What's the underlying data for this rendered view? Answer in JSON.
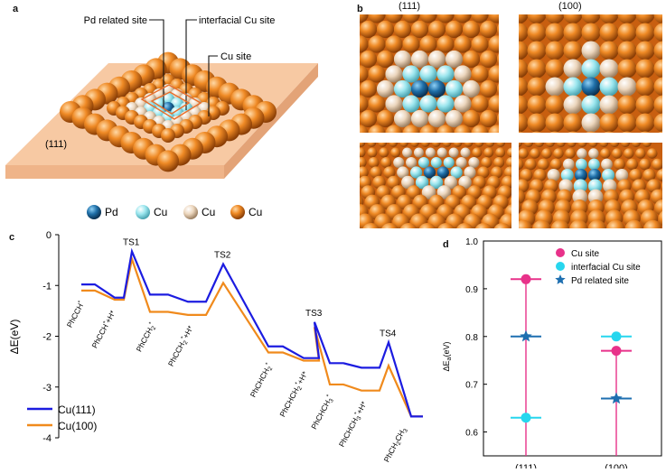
{
  "panel_a": {
    "letter": "a",
    "label_pd_site": "Pd related site",
    "label_interfacial": "interfacial Cu site",
    "label_cu_site": "Cu site",
    "label_facet": "(111)",
    "legend": [
      {
        "label": "Pd",
        "color": "#1f6fa8"
      },
      {
        "label": "Cu",
        "color": "#8fe0ea"
      },
      {
        "label": "Cu",
        "color": "#ead3b8"
      },
      {
        "label": "Cu",
        "color": "#e5781a"
      }
    ]
  },
  "panel_b": {
    "letter": "b",
    "title_111": "(111)",
    "title_100": "(100)"
  },
  "colors": {
    "cu111": "#1c1ce0",
    "cu100": "#f08a1c",
    "magenta": "#e8328a",
    "cyan": "#27d6ee",
    "blue_star": "#1e6fb0",
    "slab": "#f7c9a3",
    "cu_orange": "#e5781a",
    "cu_light": "#8fe0ea",
    "cu_beige": "#ead3b8",
    "pd_blue": "#1f6fa8"
  },
  "chart_data": [
    {
      "type": "line",
      "panel": "c",
      "ylabel": "ΔE(eV)",
      "ylim": [
        -4,
        0
      ],
      "yticks": [
        0,
        -1,
        -2,
        -3,
        -4
      ],
      "levels": [
        "PhCCH*",
        "PhCCH*+H*",
        "TS1",
        "PhCCH2*",
        "PhCCH2*+H*",
        "TS2",
        "PhCHCH2*",
        "PhCHCH2*+H*",
        "TS3",
        "PhCHCH3*",
        "PhCHCH3*+H*",
        "TS4",
        "PhCH2CH3"
      ],
      "state_labels": [
        {
          "base": "PhCCH",
          "sup": "*",
          "sub": ""
        },
        {
          "base": "PhCCH",
          "sup": "*",
          "sub": "",
          "tail": "+H*"
        },
        {
          "base": "PhCCH",
          "sup": "*",
          "sub": "2"
        },
        {
          "base": "PhCCH",
          "sup": "*",
          "sub": "2",
          "tail": "+H*"
        },
        {
          "base": "PhCHCH",
          "sup": "*",
          "sub": "2"
        },
        {
          "base": "PhCHCH",
          "sup": "*",
          "sub": "2",
          "tail": "+H*"
        },
        {
          "base": "PhCHCH",
          "sup": "*",
          "sub": "3"
        },
        {
          "base": "PhCHCH",
          "sup": "*",
          "sub": "3",
          "tail": "+H*"
        },
        {
          "base": "PhCH",
          "sup": "",
          "sub": "2",
          "tail": "CH",
          "tail_sub": "3"
        }
      ],
      "ts_labels": [
        "TS1",
        "TS2",
        "TS3",
        "TS4"
      ],
      "series": [
        {
          "name": "Cu(111)",
          "values": [
            -0.98,
            -1.24,
            -0.33,
            -1.18,
            -1.32,
            -0.58,
            -2.2,
            -2.43,
            -1.72,
            -2.53,
            -2.62,
            -2.12,
            -3.58
          ]
        },
        {
          "name": "Cu(100)",
          "values": [
            -1.1,
            -1.28,
            -0.48,
            -1.52,
            -1.58,
            -0.95,
            -2.32,
            -2.48,
            -1.82,
            -2.95,
            -3.07,
            -2.58,
            -3.58
          ]
        }
      ],
      "legend": [
        "Cu(111)",
        "Cu(100)"
      ]
    },
    {
      "type": "scatter",
      "panel": "d",
      "ylabel_base": "ΔE",
      "ylabel_sub": "a",
      "ylabel_unit": "(eV)",
      "ylim": [
        0.55,
        1.0
      ],
      "yticks": [
        1.0,
        0.9,
        0.8,
        0.7,
        0.6
      ],
      "categories": [
        "(111)",
        "(100)"
      ],
      "series": [
        {
          "name": "Cu site",
          "marker": "circle",
          "values": [
            0.92,
            0.77
          ]
        },
        {
          "name": "interfacial Cu site",
          "marker": "circle",
          "values": [
            0.63,
            0.8
          ]
        },
        {
          "name": "Pd related site",
          "marker": "star",
          "values": [
            0.8,
            0.67
          ]
        }
      ]
    }
  ]
}
